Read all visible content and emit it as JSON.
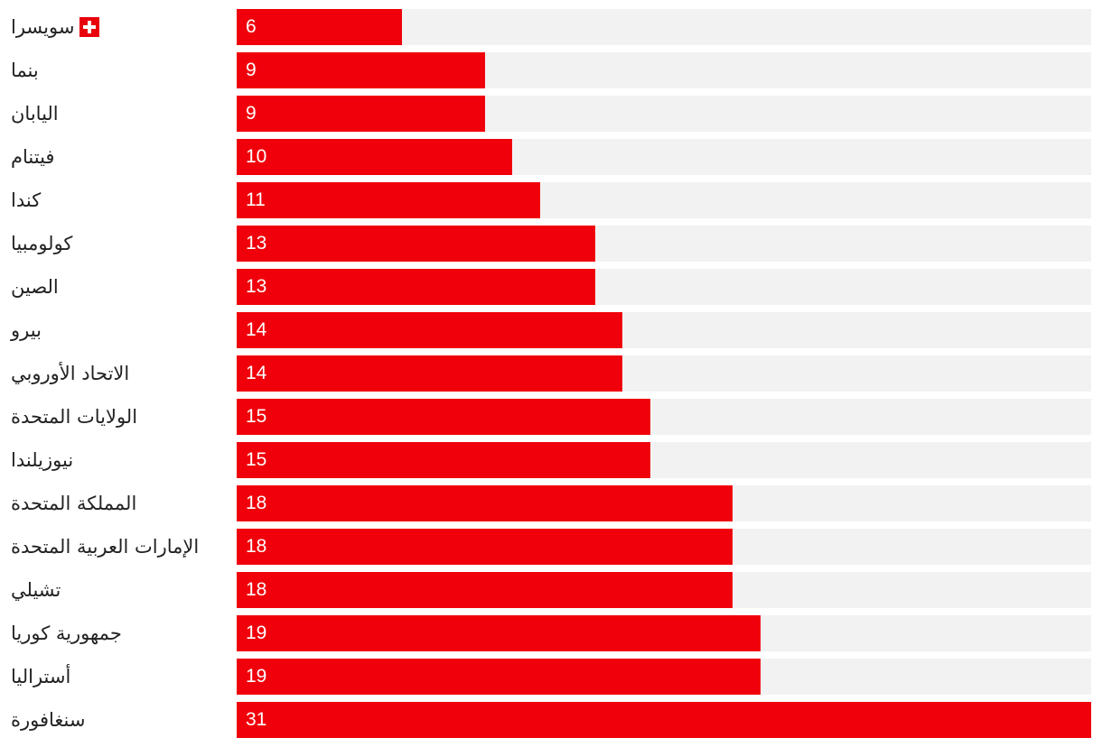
{
  "chart_data": {
    "type": "bar",
    "orientation": "horizontal",
    "categories": [
      "سويسرا",
      "بنما",
      "اليابان",
      "فيتنام",
      "كندا",
      "كولومبيا",
      "الصين",
      "بيرو",
      "الاتحاد الأوروبي",
      "الولايات المتحدة",
      "نيوزيلندا",
      "المملكة المتحدة",
      "الإمارات العربية المتحدة",
      "تشيلي",
      "جمهورية كوريا",
      "أستراليا",
      "سنغافورة"
    ],
    "values": [
      6,
      9,
      9,
      10,
      11,
      13,
      13,
      14,
      14,
      15,
      15,
      18,
      18,
      18,
      19,
      19,
      31
    ],
    "xlim": [
      0,
      31
    ],
    "grid": false,
    "legend": "none",
    "data_labels": "inside-left",
    "flag_icons": [
      "swiss-flag-icon",
      null,
      null,
      null,
      null,
      null,
      null,
      null,
      null,
      null,
      null,
      null,
      null,
      null,
      null,
      null,
      null
    ],
    "colors": {
      "bar": "#f0000a",
      "track": "#f2f2f2",
      "label_text": "#222222",
      "value_text": "#ffffff",
      "flag": "#e8000b"
    }
  }
}
